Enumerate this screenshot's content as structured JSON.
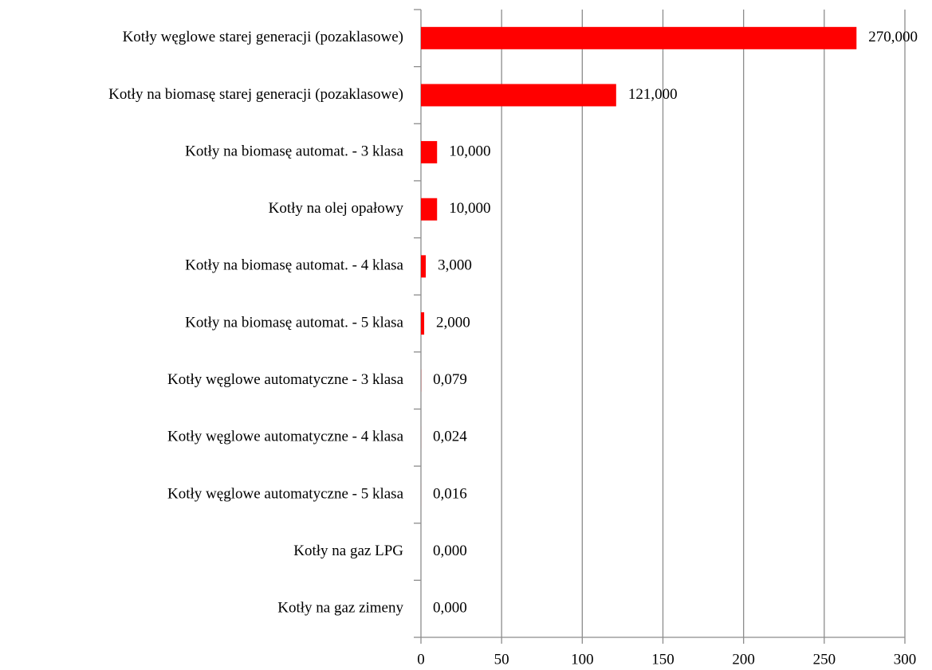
{
  "chart_data": {
    "type": "bar",
    "orientation": "horizontal",
    "categories": [
      "Kotły węglowe starej generacji (pozaklasowe)",
      "Kotły na biomasę starej generacji (pozaklasowe)",
      "Kotły na biomasę automat. - 3 klasa",
      "Kotły na olej opałowy",
      "Kotły na biomasę automat. - 4 klasa",
      "Kotły na biomasę automat. - 5 klasa",
      "Kotły węglowe automatyczne - 3 klasa",
      "Kotły węglowe automatyczne - 4 klasa",
      "Kotły węglowe automatyczne - 5 klasa",
      "Kotły na gaz LPG",
      "Kotły na gaz zimeny"
    ],
    "values": [
      270,
      121,
      10,
      10,
      3,
      2,
      0.079,
      0.024,
      0.016,
      0,
      0
    ],
    "value_labels": [
      "270,000",
      "121,000",
      "10,000",
      "10,000",
      "3,000",
      "2,000",
      "0,079",
      "0,024",
      "0,016",
      "0,000",
      "0,000"
    ],
    "color": "#ff0000",
    "xlim": [
      0,
      300
    ],
    "xticks": [
      0,
      50,
      100,
      150,
      200,
      250,
      300
    ],
    "grid": true
  }
}
